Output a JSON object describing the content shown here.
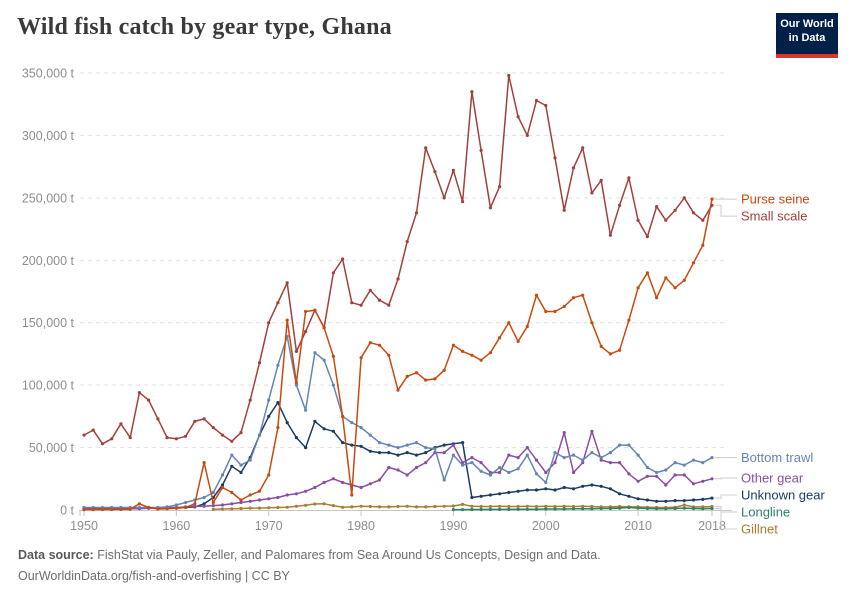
{
  "header": {
    "logo_line1": "Our World",
    "logo_line2": "in Data",
    "logo_bg": "#002147",
    "logo_accent": "#dc352b"
  },
  "chart_data": {
    "type": "line",
    "title": "Wild fish catch by gear type, Ghana",
    "unit": "t",
    "grid": true,
    "legend_position": "right-of-line-ends",
    "x_axis": {
      "start": 1950,
      "end": 2018,
      "ticks": [
        1950,
        1960,
        1970,
        1980,
        1990,
        2000,
        2010,
        2018
      ]
    },
    "y_axis": {
      "max": 350000,
      "ticks": [
        0,
        50000,
        100000,
        150000,
        200000,
        250000,
        300000,
        350000
      ],
      "tick_suffix": " t"
    },
    "series": [
      {
        "name": "Purse seine",
        "color": "#c9490f",
        "values": [
          300,
          300,
          400,
          400,
          500,
          600,
          5000,
          2000,
          800,
          1000,
          1500,
          2000,
          5000,
          38000,
          6000,
          18000,
          14000,
          8000,
          12000,
          15000,
          28000,
          66000,
          152000,
          102000,
          159000,
          160000,
          146000,
          123000,
          75000,
          12000,
          122000,
          134000,
          132000,
          124000,
          96000,
          107000,
          110000,
          104000,
          105000,
          112000,
          132000,
          127000,
          124000,
          120000,
          126000,
          138000,
          150000,
          135000,
          147000,
          172000,
          159000,
          159000,
          163000,
          170000,
          172000,
          150000,
          131000,
          125000,
          128000,
          152000,
          178000,
          190000,
          170000,
          186000,
          178000,
          184000,
          198000,
          212000,
          249000
        ]
      },
      {
        "name": "Small scale",
        "color": "#a2403b",
        "values": [
          60000,
          64000,
          53000,
          57000,
          69000,
          58000,
          94000,
          88000,
          73000,
          58000,
          57000,
          59000,
          71000,
          73000,
          66000,
          60000,
          55000,
          62000,
          88000,
          118000,
          150000,
          166000,
          182000,
          127000,
          143000,
          160000,
          146000,
          190000,
          201000,
          166000,
          164000,
          176000,
          168000,
          164000,
          185000,
          215000,
          238000,
          290000,
          271000,
          250000,
          272000,
          247000,
          335000,
          288000,
          242000,
          259000,
          348000,
          315000,
          300000,
          328000,
          324000,
          282000,
          240000,
          274000,
          290000,
          254000,
          264000,
          220000,
          244000,
          266000,
          232000,
          219000,
          243000,
          232000,
          240000,
          250000,
          238000,
          232000,
          244000
        ]
      },
      {
        "name": "Bottom trawl",
        "color": "#6585b2",
        "values": [
          2000,
          2000,
          2000,
          2000,
          2000,
          2000,
          2000,
          2000,
          2000,
          2500,
          4000,
          6000,
          8000,
          10000,
          14000,
          28000,
          44000,
          36000,
          40000,
          60000,
          88000,
          116000,
          139000,
          100000,
          80000,
          126000,
          120000,
          100000,
          75000,
          70000,
          66000,
          60000,
          54000,
          52000,
          50000,
          52000,
          54000,
          50000,
          49000,
          24000,
          44000,
          36000,
          38000,
          31000,
          28000,
          34000,
          30000,
          33000,
          44000,
          29000,
          22000,
          46000,
          42000,
          44000,
          40000,
          46000,
          42000,
          46000,
          52000,
          52000,
          44000,
          34000,
          30000,
          32000,
          38000,
          36000,
          40000,
          38000,
          42000
        ]
      },
      {
        "name": "Other gear",
        "color": "#8a4da6",
        "values": [
          800,
          800,
          800,
          800,
          800,
          1000,
          1000,
          1500,
          2000,
          2000,
          2000,
          2500,
          3000,
          3000,
          3500,
          4000,
          5000,
          6000,
          7000,
          8000,
          9000,
          10000,
          12000,
          13000,
          15000,
          18000,
          22000,
          25000,
          22000,
          20000,
          18000,
          21000,
          24000,
          34000,
          32000,
          28000,
          34000,
          38000,
          46000,
          46000,
          52000,
          38000,
          42000,
          38000,
          30000,
          30000,
          44000,
          42000,
          50000,
          40000,
          30000,
          38000,
          62000,
          30000,
          38000,
          63000,
          40000,
          38000,
          38000,
          29000,
          23000,
          27000,
          27000,
          20000,
          28000,
          28000,
          21000,
          23000,
          25000
        ]
      },
      {
        "name": "Unknown gear",
        "color": "#1d3c63",
        "values": [
          1500,
          1500,
          1500,
          1500,
          1500,
          1500,
          1500,
          1500,
          1500,
          1500,
          1500,
          2000,
          2500,
          5000,
          10000,
          20000,
          35000,
          30000,
          42000,
          60000,
          75000,
          86000,
          70000,
          58000,
          50000,
          71000,
          65000,
          63000,
          54000,
          52000,
          51000,
          47000,
          46000,
          46000,
          44000,
          46000,
          44000,
          46000,
          50000,
          52000,
          53000,
          54000,
          10000,
          11000,
          12000,
          13000,
          14000,
          15000,
          16000,
          16000,
          17000,
          16000,
          18000,
          17000,
          19000,
          20000,
          19000,
          17000,
          13000,
          11000,
          9000,
          8000,
          7000,
          7000,
          7500,
          7500,
          8000,
          8500,
          9500
        ]
      },
      {
        "name": "Longline",
        "color": "#2c8465",
        "values": [
          null,
          null,
          null,
          null,
          null,
          null,
          null,
          null,
          null,
          null,
          null,
          null,
          null,
          null,
          null,
          null,
          null,
          null,
          null,
          null,
          null,
          null,
          null,
          null,
          null,
          null,
          null,
          null,
          null,
          null,
          null,
          null,
          null,
          null,
          null,
          null,
          null,
          null,
          null,
          null,
          300,
          300,
          400,
          400,
          500,
          500,
          500,
          600,
          600,
          600,
          800,
          800,
          800,
          1000,
          1000,
          1000,
          1200,
          1200,
          1500,
          2000,
          1500,
          1200,
          1000,
          1000,
          1200,
          1500,
          1200,
          1000,
          1200
        ]
      },
      {
        "name": "Gillnet",
        "color": "#ad7d33",
        "values": [
          null,
          null,
          null,
          null,
          null,
          null,
          null,
          null,
          null,
          null,
          null,
          null,
          null,
          null,
          500,
          800,
          1000,
          1200,
          1500,
          1500,
          1800,
          2000,
          2200,
          3000,
          3800,
          4800,
          5000,
          3500,
          2200,
          2500,
          3000,
          2800,
          2500,
          2500,
          2800,
          3000,
          2500,
          2500,
          2800,
          3000,
          3200,
          4500,
          3000,
          2800,
          2800,
          3000,
          2800,
          2800,
          3000,
          2800,
          3000,
          2800,
          3000,
          2800,
          3000,
          2800,
          2500,
          2500,
          2800,
          2500,
          2500,
          2200,
          2000,
          2000,
          2200,
          4000,
          2500,
          2500,
          2800
        ]
      }
    ]
  },
  "footer": {
    "source_label": "Data source:",
    "source_text": "FishStat via Pauly, Zeller, and Palomares from Sea Around Us Concepts, Design and Data.",
    "link_line": "OurWorldinData.org/fish-and-overfishing | CC BY"
  }
}
